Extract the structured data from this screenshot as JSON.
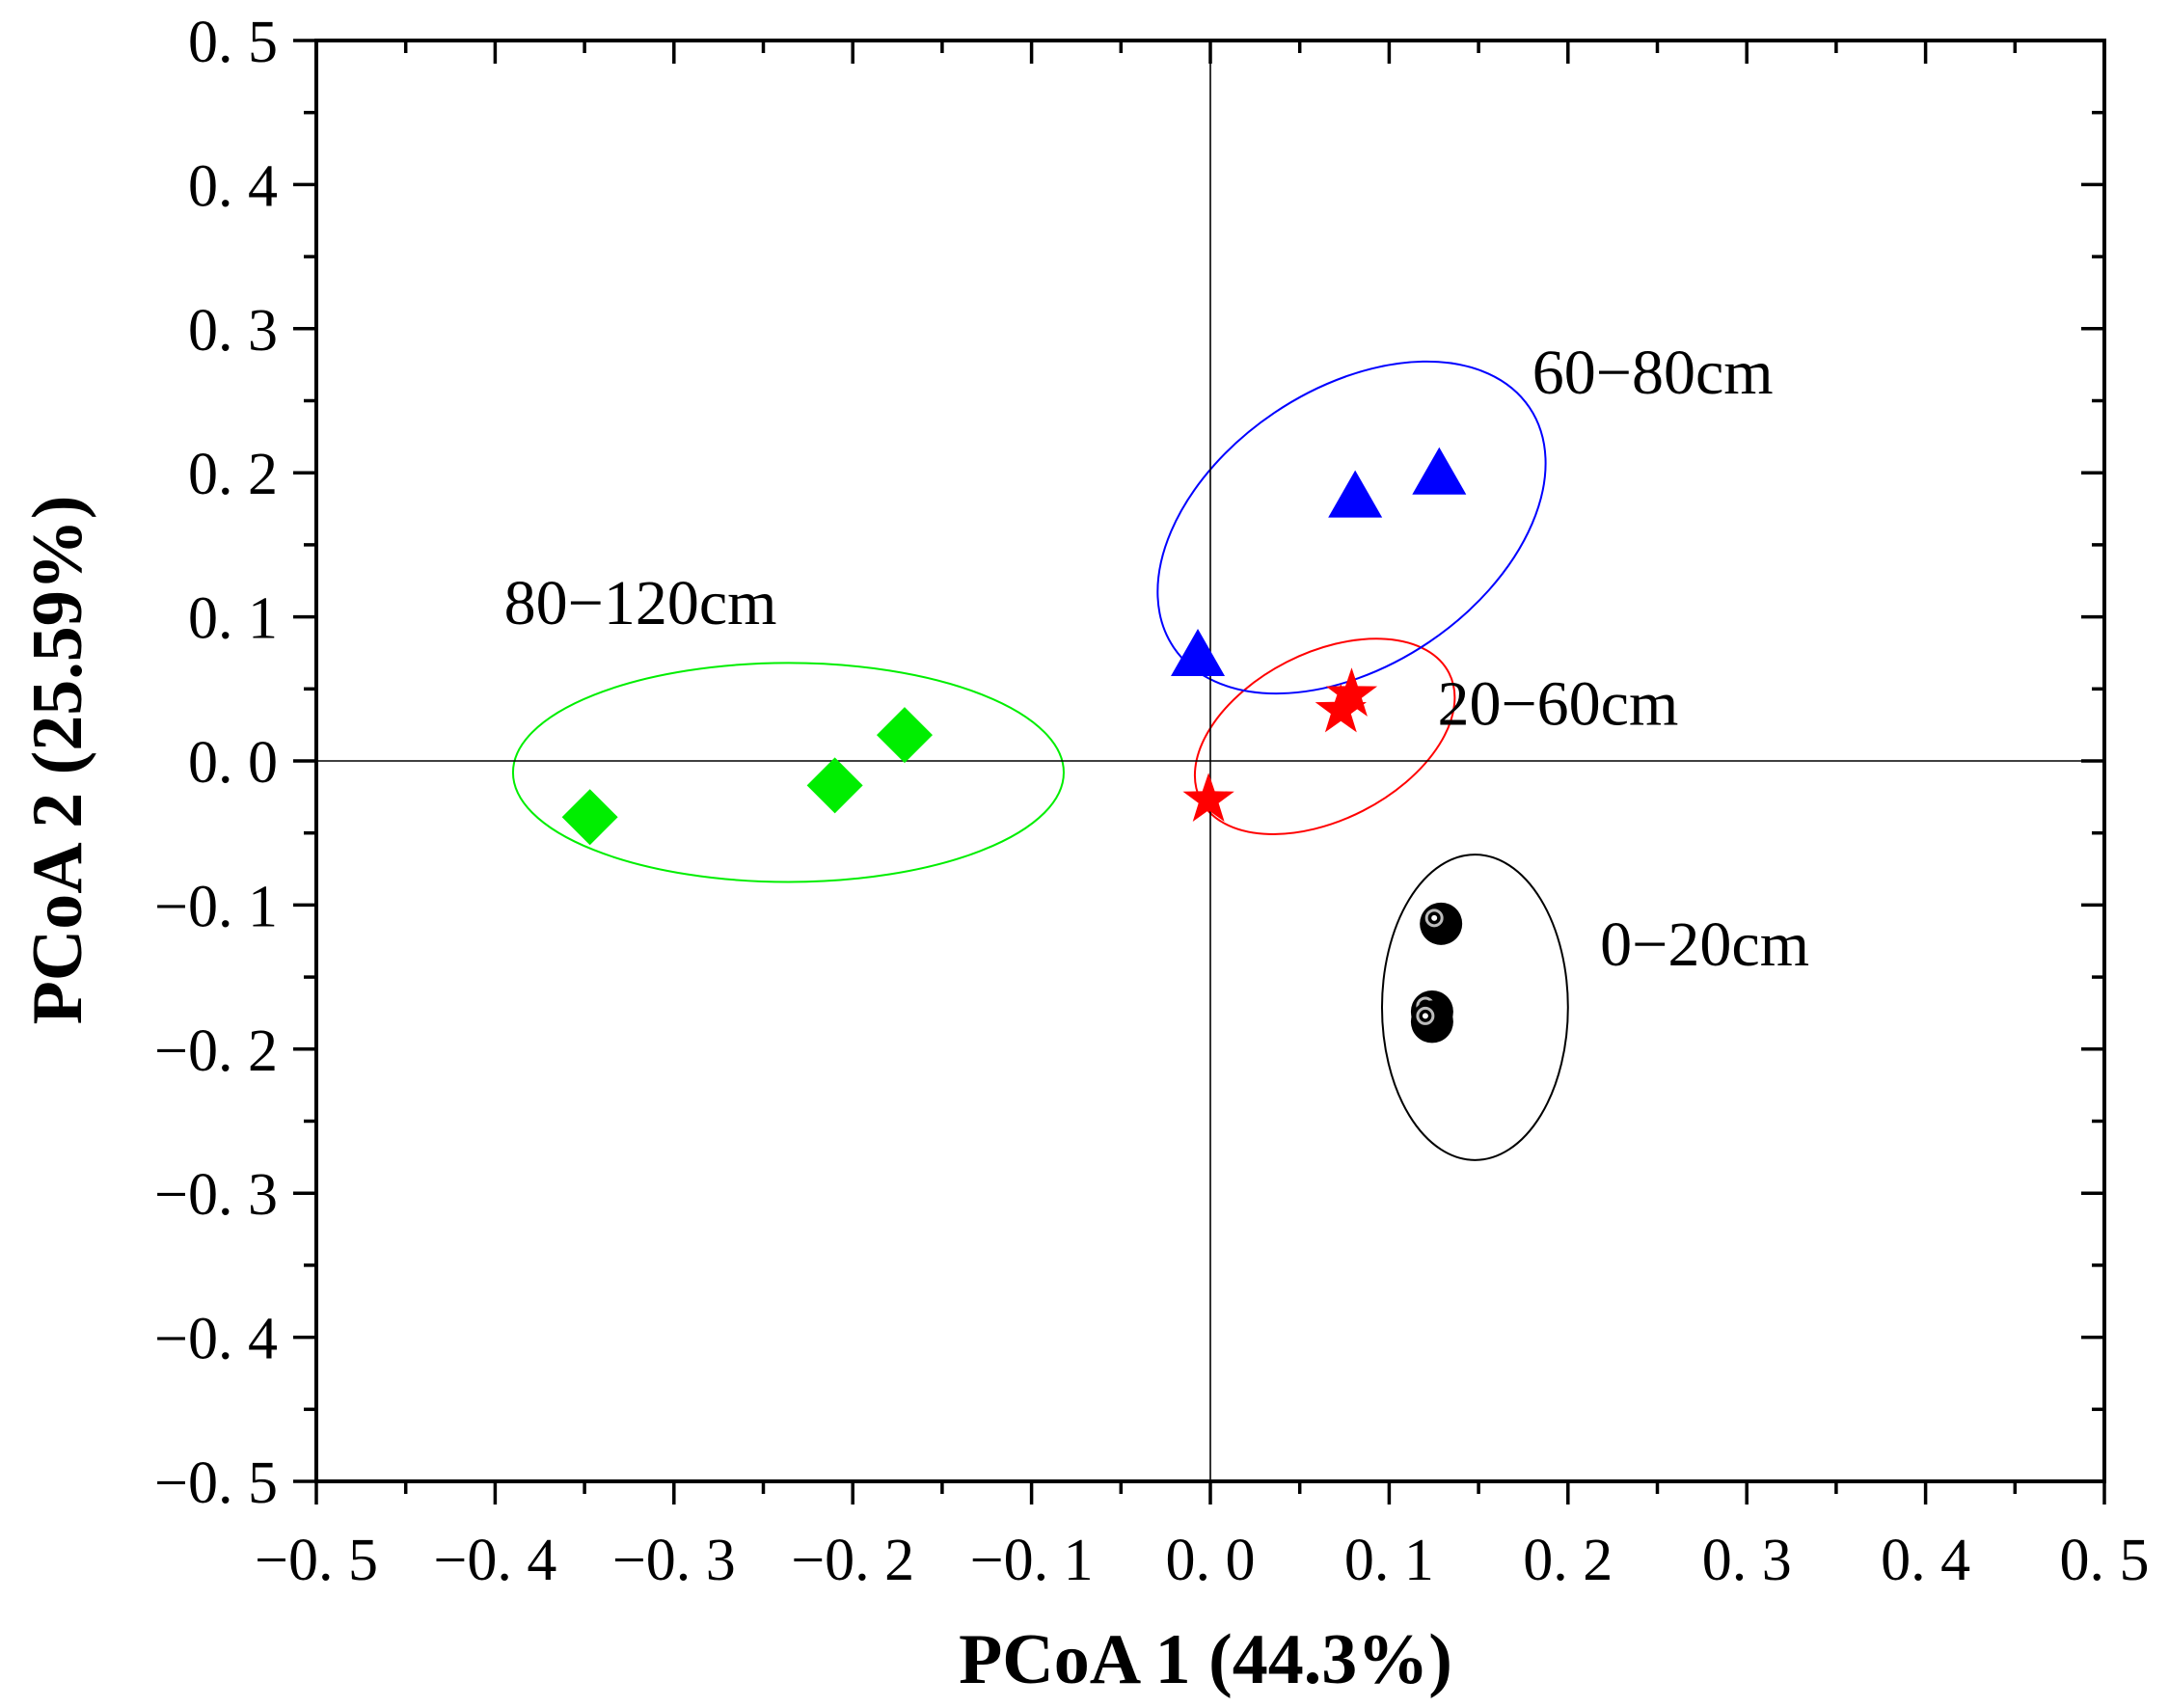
{
  "chart_data": {
    "type": "scatter",
    "title": "",
    "xlabel": "PCoA 1 (44.3%)",
    "ylabel": "PCoA 2 (25.59%)",
    "xlim": [
      -0.5,
      0.5
    ],
    "ylim": [
      -0.5,
      0.5
    ],
    "x_tick_labels": [
      "−0. 5",
      "−0. 4",
      "−0. 3",
      "−0. 2",
      "−0. 1",
      "0. 0",
      "0. 1",
      "0. 2",
      "0. 3",
      "0. 4",
      "0. 5"
    ],
    "y_tick_labels": [
      "0. 5",
      "0. 4",
      "0. 3",
      "0. 2",
      "0. 1",
      "0. 0",
      "−0. 1",
      "−0. 2",
      "−0. 3",
      "−0. 4",
      "−0. 5"
    ],
    "reference_lines": {
      "x": 0.0,
      "y": 0.0
    },
    "series": [
      {
        "name": "0−20cm",
        "marker": "circle",
        "color": "#000000",
        "points": [
          [
            0.129,
            -0.113
          ],
          [
            0.124,
            -0.174
          ],
          [
            0.124,
            -0.181
          ]
        ],
        "ellipse": {
          "cx": 0.148,
          "cy": -0.171,
          "rx": 0.052,
          "ry": 0.106,
          "angle": 0
        }
      },
      {
        "name": "20−60cm",
        "marker": "star",
        "color": "#ff0000",
        "points": [
          -0.001,
          -0.027,
          0.073,
          0.035,
          0.079,
          0.046
        ],
        "ellipse": {
          "cx": 0.064,
          "cy": 0.017,
          "rx": 0.078,
          "ry": 0.058,
          "angle": 27
        }
      },
      {
        "name": "60−80cm",
        "marker": "triangle",
        "color": "#0000ff",
        "points": [
          [
            -0.007,
            0.073
          ],
          [
            0.081,
            0.183
          ],
          [
            0.128,
            0.199
          ]
        ],
        "ellipse": {
          "cx": 0.079,
          "cy": 0.162,
          "rx": 0.12,
          "ry": 0.096,
          "angle": 34
        }
      },
      {
        "name": "80−120cm",
        "marker": "diamond",
        "color": "#00ee00",
        "points": [
          [
            -0.347,
            -0.039
          ],
          [
            -0.21,
            -0.017
          ],
          [
            -0.171,
            0.018
          ]
        ],
        "ellipse": {
          "cx": -0.236,
          "cy": -0.008,
          "rx": 0.154,
          "ry": 0.076,
          "angle": 0
        }
      }
    ],
    "annotations": [
      {
        "text": "60−80cm",
        "x": 0.18,
        "y": 0.255
      },
      {
        "text": "80−120cm",
        "x": -0.395,
        "y": 0.095
      },
      {
        "text": "20−60cm",
        "x": 0.127,
        "y": 0.025
      },
      {
        "text": "0−20cm",
        "x": 0.218,
        "y": -0.142
      }
    ]
  }
}
